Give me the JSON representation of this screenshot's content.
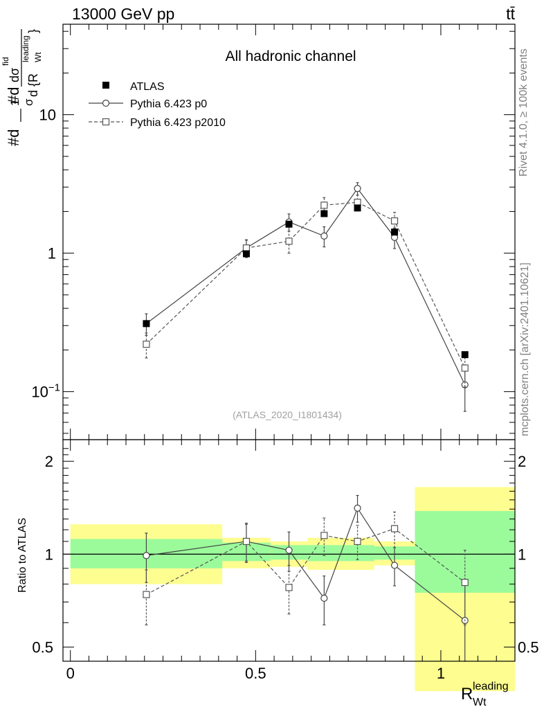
{
  "header": {
    "left": "13000 GeV pp",
    "right": "tt̄"
  },
  "side_labels": {
    "rivet": "Rivet 4.1.0, ≥ 100k events",
    "mcplots": "mcplots.cern.ch [arXiv:2401.10621]"
  },
  "chart_data": [
    {
      "type": "scatter",
      "panel": "main",
      "title": "All hadronic channel",
      "watermark": "(ATLAS_2020_I1801434)",
      "ylabel_parts": {
        "prefix": "#d",
        "frac1_num": "1",
        "frac1_den": "σ",
        "mid": "#d",
        "frac2_num": "dσ",
        "frac2_num_sup": "fid",
        "frac2_den": "d {R",
        "frac2_den_sup": "leading",
        "frac2_den_sub": "Wt",
        "frac2_den_close": "}"
      },
      "yscale": "log",
      "ylim": [
        0.045,
        45
      ],
      "xlim": [
        -0.02,
        1.2
      ],
      "yticks": [
        {
          "value": 0.1,
          "base": "10",
          "exp": "−1"
        },
        {
          "value": 1,
          "base": "1",
          "exp": ""
        },
        {
          "value": 10,
          "base": "10",
          "exp": ""
        }
      ],
      "legend": {
        "position": "top-left",
        "entries": [
          "ATLAS",
          "Pythia 6.423 p0",
          "Pythia 6.423 p2010"
        ]
      },
      "series": [
        {
          "name": "ATLAS",
          "marker": "filled-square",
          "x": [
            0.205,
            0.475,
            0.59,
            0.685,
            0.775,
            0.875,
            1.065
          ],
          "values": [
            0.31,
            0.99,
            1.62,
            1.93,
            2.12,
            1.42,
            0.185
          ]
        },
        {
          "name": "Pythia 6.423 p0",
          "marker": "open-circle",
          "line": "solid",
          "x": [
            0.205,
            0.475,
            0.59,
            0.685,
            0.775,
            0.875,
            1.065
          ],
          "values": [
            0.31,
            1.09,
            1.68,
            1.33,
            2.93,
            1.3,
            0.112
          ],
          "err_low": [
            0.055,
            0.16,
            0.24,
            0.22,
            0.3,
            0.22,
            0.04
          ],
          "err_high": [
            0.055,
            0.16,
            0.24,
            0.22,
            0.3,
            0.22,
            0.04
          ]
        },
        {
          "name": "Pythia 6.423 p2010",
          "marker": "open-square",
          "line": "dashed",
          "x": [
            0.205,
            0.475,
            0.59,
            0.685,
            0.775,
            0.875,
            1.065
          ],
          "values": [
            0.22,
            1.09,
            1.22,
            2.22,
            2.33,
            1.71,
            0.148
          ],
          "err_low": [
            0.045,
            0.15,
            0.22,
            0.3,
            0.3,
            0.26,
            0.04
          ],
          "err_high": [
            0.045,
            0.15,
            0.22,
            0.3,
            0.3,
            0.26,
            0.04
          ]
        }
      ]
    },
    {
      "type": "scatter",
      "panel": "ratio",
      "ylabel": "Ratio to ATLAS",
      "xlabel": "R",
      "xlabel_sup": "leading",
      "xlabel_sub": "Wt",
      "yscale": "log",
      "ylim": [
        0.45,
        2.35
      ],
      "xlim": [
        -0.02,
        1.2
      ],
      "yticks": [
        {
          "value": 0.5,
          "label": "0.5"
        },
        {
          "value": 1,
          "label": "1"
        },
        {
          "value": 2,
          "label": "2"
        }
      ],
      "xticks": [
        {
          "value": 0,
          "label": "0"
        },
        {
          "value": 0.5,
          "label": "0.5"
        },
        {
          "value": 1,
          "label": "1"
        }
      ],
      "bands": [
        {
          "x0": 0.0,
          "x1": 0.41,
          "inner": [
            0.9,
            1.12
          ],
          "outer": [
            0.8,
            1.25
          ]
        },
        {
          "x0": 0.41,
          "x1": 0.54,
          "inner": [
            0.95,
            1.09
          ],
          "outer": [
            0.9,
            1.13
          ]
        },
        {
          "x0": 0.54,
          "x1": 0.64,
          "inner": [
            0.96,
            1.07
          ],
          "outer": [
            0.91,
            1.1
          ]
        },
        {
          "x0": 0.64,
          "x1": 0.82,
          "inner": [
            0.95,
            1.07
          ],
          "outer": [
            0.89,
            1.13
          ]
        },
        {
          "x0": 0.82,
          "x1": 0.93,
          "inner": [
            0.96,
            1.06
          ],
          "outer": [
            0.92,
            1.1
          ]
        },
        {
          "x0": 0.93,
          "x1": 1.2,
          "inner": [
            0.75,
            1.38
          ],
          "outer": [
            0.36,
            1.65
          ]
        }
      ],
      "series": [
        {
          "name": "Pythia 6.423 p0",
          "marker": "open-circle",
          "line": "solid",
          "x": [
            0.205,
            0.475,
            0.59,
            0.685,
            0.775,
            0.875,
            1.065
          ],
          "values": [
            0.99,
            1.1,
            1.03,
            0.72,
            1.41,
            0.92,
            0.61
          ],
          "err_low": [
            0.18,
            0.16,
            0.15,
            0.13,
            0.14,
            0.13,
            0.22
          ],
          "err_high": [
            0.18,
            0.16,
            0.15,
            0.13,
            0.14,
            0.13,
            0.22
          ]
        },
        {
          "name": "Pythia 6.423 p2010",
          "marker": "open-square",
          "line": "dashed",
          "x": [
            0.205,
            0.475,
            0.59,
            0.685,
            0.775,
            0.875,
            1.065
          ],
          "values": [
            0.74,
            1.1,
            0.78,
            1.15,
            1.1,
            1.21,
            0.81
          ],
          "err_low": [
            0.15,
            0.15,
            0.14,
            0.16,
            0.14,
            0.16,
            0.22
          ],
          "err_high": [
            0.15,
            0.15,
            0.14,
            0.16,
            0.14,
            0.16,
            0.22
          ]
        }
      ]
    }
  ],
  "colors": {
    "inner_band": "#9bfb9b",
    "outer_band": "#fdfd90",
    "data": "#000000",
    "mc1": "#444444",
    "mc2": "#555555",
    "watermark": "#a0a0a0",
    "side_text": "#808080"
  }
}
